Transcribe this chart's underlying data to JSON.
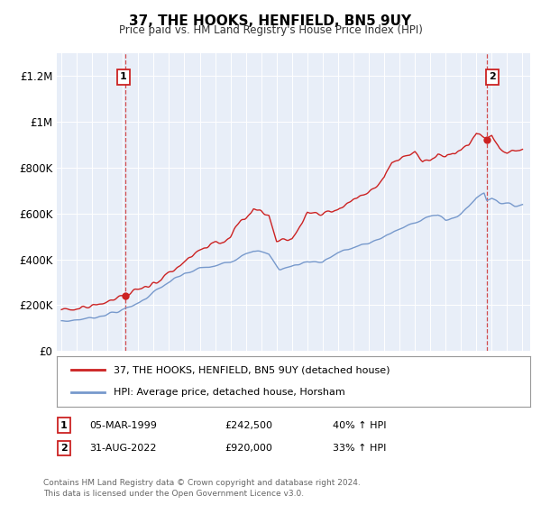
{
  "title": "37, THE HOOKS, HENFIELD, BN5 9UY",
  "subtitle": "Price paid vs. HM Land Registry's House Price Index (HPI)",
  "legend_line1": "37, THE HOOKS, HENFIELD, BN5 9UY (detached house)",
  "legend_line2": "HPI: Average price, detached house, Horsham",
  "annotation1_label": "1",
  "annotation1_date": "05-MAR-1999",
  "annotation1_price": "£242,500",
  "annotation1_hpi": "40% ↑ HPI",
  "annotation2_label": "2",
  "annotation2_date": "31-AUG-2022",
  "annotation2_price": "£920,000",
  "annotation2_hpi": "33% ↑ HPI",
  "footer": "Contains HM Land Registry data © Crown copyright and database right 2024.\nThis data is licensed under the Open Government Licence v3.0.",
  "red_color": "#cc2222",
  "blue_color": "#7799cc",
  "plot_bg_color": "#e8eef8",
  "fig_bg_color": "#ffffff",
  "grid_color": "#ffffff",
  "ylim_min": 0,
  "ylim_max": 1300000,
  "yticks": [
    0,
    200000,
    400000,
    600000,
    800000,
    1000000,
    1200000
  ],
  "ytick_labels": [
    "£0",
    "£200K",
    "£400K",
    "£600K",
    "£800K",
    "£1M",
    "£1.2M"
  ],
  "sale1_x": 1999.17,
  "sale1_y": 242500,
  "sale2_x": 2022.67,
  "sale2_y": 920000,
  "dashed_line_color": "#cc2222",
  "xlim_min": 1994.7,
  "xlim_max": 2025.5
}
